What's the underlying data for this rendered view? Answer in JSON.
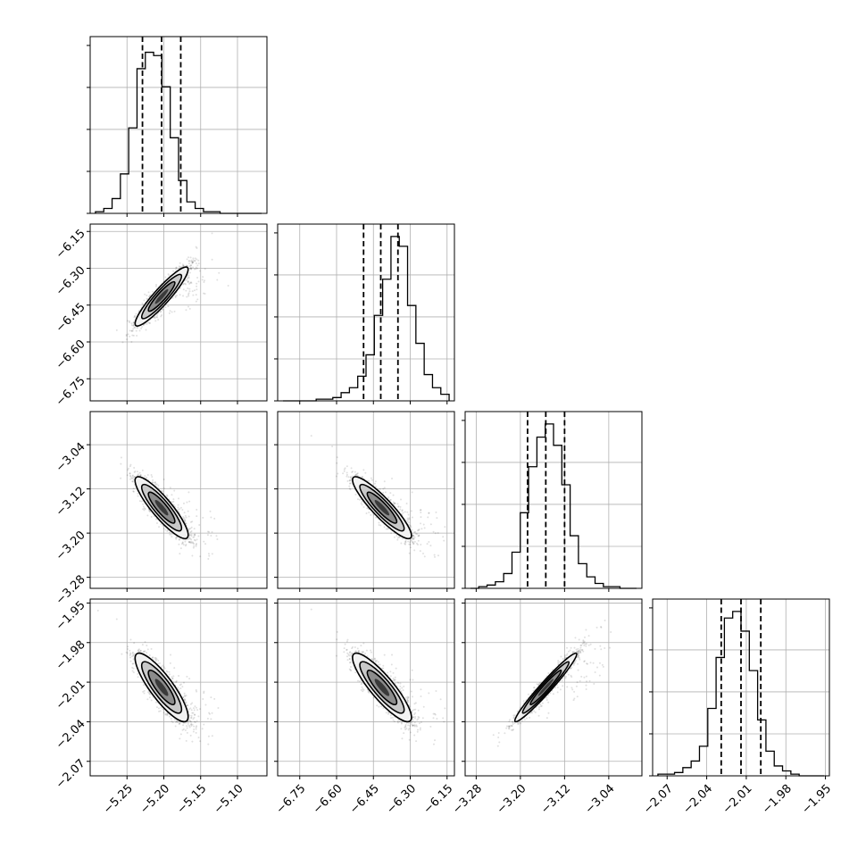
{
  "chart_data": {
    "type": "corner",
    "grid": true,
    "parameters": [
      {
        "range": [
          -5.3,
          -5.06
        ],
        "ticks": [
          "−5.25",
          "−5.20",
          "−5.15",
          "−5.10"
        ],
        "quantiles": [
          -5.229,
          -5.203,
          -5.177
        ],
        "mean": -5.203,
        "sd": 0.018
      },
      {
        "range": [
          -6.84,
          -6.12
        ],
        "ticks": [
          "−6.75",
          "−6.60",
          "−6.45",
          "−6.30",
          "−6.15"
        ],
        "quantiles": [
          -6.49,
          -6.42,
          -6.35
        ],
        "mean": -6.415,
        "sd": 0.06
      },
      {
        "range": [
          -3.3,
          -2.98
        ],
        "ticks": [
          "−3.28",
          "−3.20",
          "−3.12",
          "−3.04"
        ],
        "quantiles": [
          -3.187,
          -3.154,
          -3.12
        ],
        "mean": -3.154,
        "sd": 0.028
      },
      {
        "range": [
          -2.081,
          -1.947
        ],
        "ticks": [
          "−2.07",
          "−2.04",
          "−2.01",
          "−1.98",
          "−1.95"
        ],
        "quantiles": [
          -2.029,
          -2.014,
          -1.999
        ],
        "mean": -2.014,
        "sd": 0.013
      }
    ],
    "histograms": [
      [
        1,
        3,
        9,
        24,
        52,
        88,
        98,
        96,
        77,
        46,
        20,
        7,
        3,
        1,
        1,
        0,
        0,
        0,
        0,
        0
      ],
      [
        0,
        0,
        0,
        0,
        1,
        1,
        2,
        5,
        8,
        15,
        28,
        52,
        74,
        100,
        94,
        58,
        35,
        16,
        8,
        4
      ],
      [
        0,
        1,
        2,
        4,
        9,
        22,
        46,
        74,
        92,
        100,
        87,
        63,
        32,
        15,
        7,
        3,
        1,
        1,
        0,
        0
      ],
      [
        1,
        1,
        2,
        5,
        9,
        18,
        41,
        72,
        96,
        100,
        88,
        64,
        34,
        15,
        6,
        3,
        1,
        0,
        0,
        0
      ]
    ],
    "correlations": [
      [
        1.0,
        0.92,
        -0.88,
        -0.85
      ],
      [
        0.92,
        1.0,
        -0.9,
        -0.87
      ],
      [
        -0.88,
        -0.9,
        1.0,
        0.97
      ],
      [
        -0.85,
        -0.87,
        0.97,
        1.0
      ]
    ]
  }
}
